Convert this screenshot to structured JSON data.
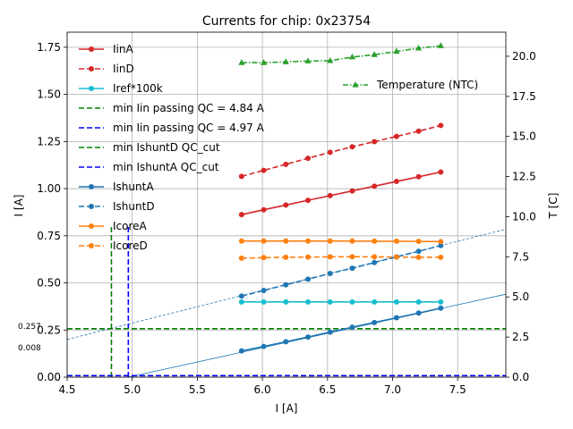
{
  "chart_data": {
    "type": "line",
    "title": "Currents for chip: 0x23754",
    "xlabel": "I [A]",
    "ylabel": "I [A]",
    "y2label": "T [C]",
    "xlim": [
      4.5,
      7.87
    ],
    "ylim": [
      0,
      1.83
    ],
    "y2lim": [
      0,
      21.5
    ],
    "xticks": [
      "4.5",
      "5.0",
      "5.5",
      "6.0",
      "6.5",
      "7.0",
      "7.5"
    ],
    "yticks": [
      "0.00",
      "0.25",
      "0.50",
      "0.75",
      "1.00",
      "1.25",
      "1.50",
      "1.75"
    ],
    "y2ticks": [
      "0.0",
      "2.5",
      "5.0",
      "7.5",
      "10.0",
      "12.5",
      "15.0",
      "17.5",
      "20.0"
    ],
    "grid": true,
    "x": [
      5.84,
      6.01,
      6.18,
      6.35,
      6.52,
      6.69,
      6.86,
      7.03,
      7.2,
      7.37
    ],
    "series": [
      {
        "name": "IinA",
        "color": "#d62728",
        "dash": "solid",
        "marker": "circle",
        "axis": "left",
        "values": [
          0.862,
          0.888,
          0.913,
          0.938,
          0.963,
          0.988,
          1.013,
          1.038,
          1.063,
          1.088
        ]
      },
      {
        "name": "IinD",
        "color": "#d62728",
        "dash": "dashed",
        "marker": "circle",
        "axis": "left",
        "values": [
          1.065,
          1.097,
          1.129,
          1.161,
          1.193,
          1.222,
          1.249,
          1.277,
          1.305,
          1.335
        ]
      },
      {
        "name": "Iref*100k",
        "color": "#17becf",
        "dash": "solid",
        "marker": "circle",
        "axis": "left",
        "values": [
          0.399,
          0.399,
          0.399,
          0.399,
          0.399,
          0.399,
          0.399,
          0.399,
          0.399,
          0.399
        ]
      },
      {
        "name": "IshuntA",
        "color": "#1f77b4",
        "dash": "solid",
        "marker": "circle",
        "axis": "left",
        "values": [
          0.139,
          0.163,
          0.188,
          0.213,
          0.239,
          0.265,
          0.29,
          0.315,
          0.34,
          0.366
        ]
      },
      {
        "name": "IshuntD",
        "color": "#1f77b4",
        "dash": "dashed",
        "marker": "circle",
        "axis": "left",
        "values": [
          0.43,
          0.46,
          0.49,
          0.52,
          0.55,
          0.578,
          0.608,
          0.638,
          0.668,
          0.698
        ]
      },
      {
        "name": "IcoreA",
        "color": "#ff7f0e",
        "dash": "solid",
        "marker": "circle",
        "axis": "left",
        "values": [
          0.722,
          0.722,
          0.722,
          0.722,
          0.722,
          0.722,
          0.721,
          0.721,
          0.72,
          0.719
        ]
      },
      {
        "name": "IcoreD",
        "color": "#ff7f0e",
        "dash": "dashed",
        "marker": "circle",
        "axis": "left",
        "values": [
          0.631,
          0.634,
          0.636,
          0.637,
          0.638,
          0.639,
          0.638,
          0.637,
          0.636,
          0.636
        ]
      }
    ],
    "temperature": {
      "name": "Temperature (NTC)",
      "color": "#2ca02c",
      "dash": "dashdot",
      "marker": "triangle",
      "axis": "right",
      "values": [
        19.6,
        19.6,
        19.65,
        19.7,
        19.72,
        19.95,
        20.1,
        20.3,
        20.5,
        20.65
      ]
    },
    "reference_lines": [
      {
        "name": "min Iin passing QC = 4.84 A",
        "orientation": "vertical",
        "x": 4.84,
        "y_top": 0.8,
        "color": "#008000"
      },
      {
        "name": "min Iin passing QC = 4.97 A",
        "orientation": "vertical",
        "x": 4.97,
        "y_top": 0.8,
        "color": "#0000ff"
      },
      {
        "name": "min IshuntD QC_cut",
        "orientation": "horizontal",
        "y": 0.257,
        "color": "#008000"
      },
      {
        "name": "min IshuntA QC_cut",
        "orientation": "horizontal",
        "y": 0.008,
        "color": "#0000ff"
      }
    ],
    "fit_lines": [
      {
        "series": "IshuntD",
        "color": "#1f77b4",
        "x_range": [
          4.5,
          7.87
        ],
        "y_range": [
          0.2,
          0.785
        ]
      },
      {
        "series": "IshuntA",
        "color": "#1f77b4",
        "x_range": [
          4.97,
          7.87
        ],
        "y_range": [
          0.0,
          0.44
        ]
      }
    ],
    "annotations": [
      "0.257",
      "0.008"
    ],
    "legend_placement": "upper left",
    "legend2_placement": "upper right"
  }
}
